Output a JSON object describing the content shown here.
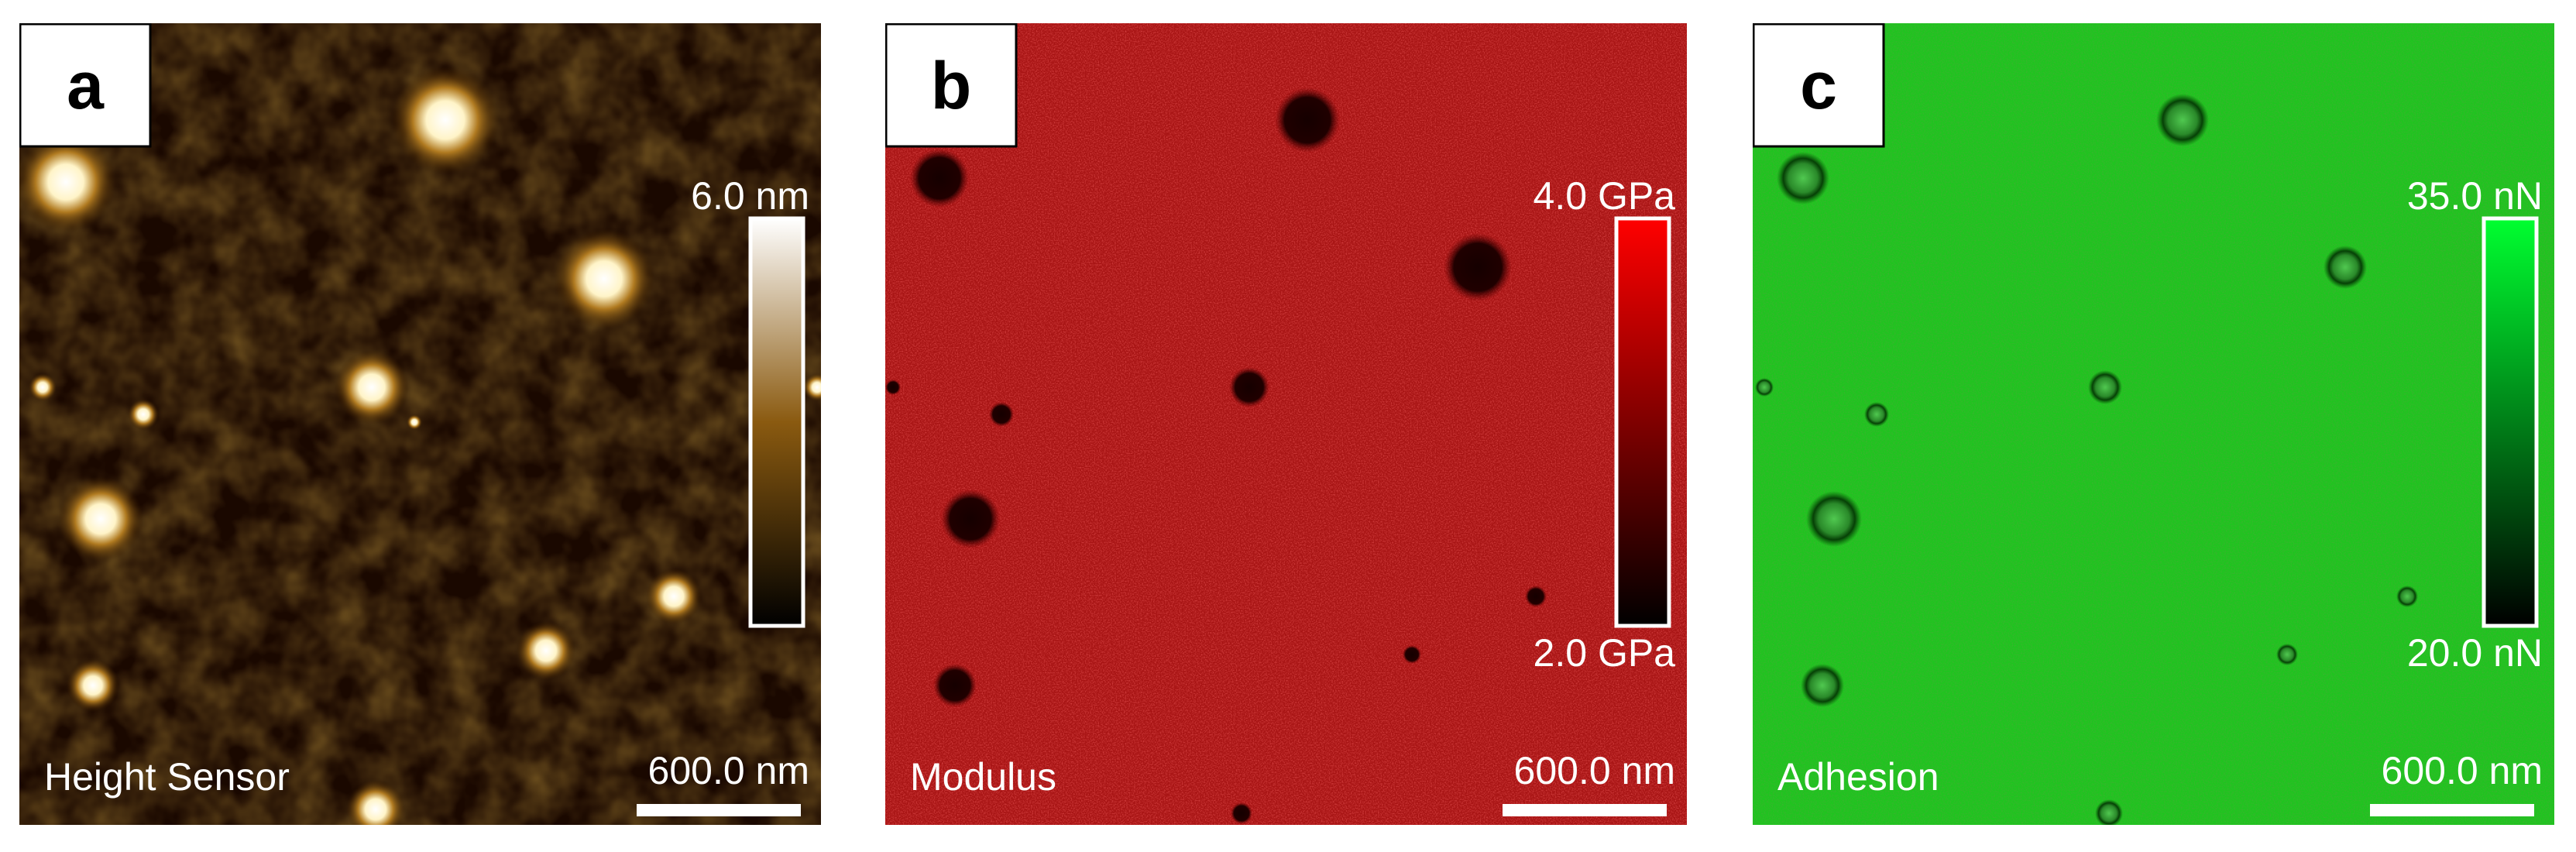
{
  "panels": [
    {
      "label": "a",
      "channel": "Height Sensor",
      "scale_bar": "600.0 nm",
      "colorbar_max": "6.0 nm",
      "colorbar_min": ""
    },
    {
      "label": "b",
      "channel": "Modulus",
      "scale_bar": "600.0 nm",
      "colorbar_max": "4.0 GPa",
      "colorbar_min": "2.0 GPa"
    },
    {
      "label": "c",
      "channel": "Adhesion",
      "scale_bar": "600.0 nm",
      "colorbar_max": "35.0 nN",
      "colorbar_min": "20.0 nN"
    }
  ]
}
